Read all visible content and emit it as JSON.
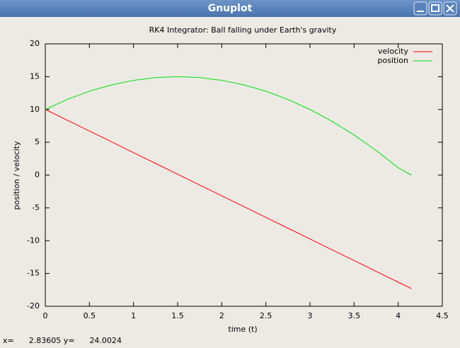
{
  "window": {
    "title": "Gnuplot"
  },
  "status_bar": {
    "x_label": "x=",
    "x": "2.83605",
    "y_label": "y=",
    "y": "24.0024"
  },
  "chart_data": {
    "type": "line",
    "title": "RK4 Integrator: Ball falling under Earth's gravity",
    "x_label": "time (t)",
    "y_label": "position / velocity",
    "x": [
      0,
      0.25,
      0.5,
      0.75,
      1.0,
      1.25,
      1.5,
      1.75,
      2.0,
      2.25,
      2.5,
      2.75,
      3.0,
      3.25,
      3.5,
      3.75,
      4.0,
      4.15
    ],
    "series": [
      {
        "name": "velocity",
        "color": "#ff0000",
        "values": [
          10,
          8.36,
          6.71,
          5.07,
          3.42,
          1.78,
          0.13,
          -1.52,
          -3.16,
          -4.81,
          -6.45,
          -8.1,
          -9.74,
          -11.39,
          -13.03,
          -14.68,
          -16.32,
          -17.31
        ]
      },
      {
        "name": "position",
        "color": "#00e000",
        "values": [
          10,
          11.53,
          12.78,
          13.75,
          14.44,
          14.86,
          15,
          14.86,
          14.44,
          13.75,
          12.78,
          11.53,
          10,
          8.19,
          6.11,
          3.75,
          1.11,
          0
        ]
      }
    ],
    "xlim": [
      0,
      4.5
    ],
    "ylim": [
      -20,
      20
    ],
    "xticks": [
      0,
      0.5,
      1,
      1.5,
      2,
      2.5,
      3,
      3.5,
      4,
      4.5
    ],
    "yticks": [
      -20,
      -15,
      -10,
      -5,
      0,
      5,
      10,
      15,
      20
    ],
    "grid": false,
    "legend": "top-right"
  }
}
